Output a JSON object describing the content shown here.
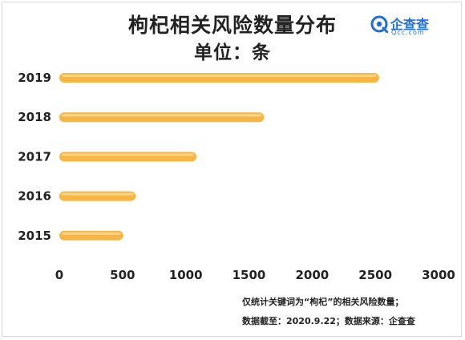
{
  "header": {
    "title": "枸杞相关风险数量分布",
    "subtitle": "单位：条"
  },
  "brand": {
    "name": "企查查",
    "domain": "Qcc.com",
    "color": "#1f6fd6"
  },
  "notes": {
    "line1": "仅统计关键词为“枸杞”的相关风险数量；",
    "line2": "数据截至：2020.9.22；数据来源：企查查"
  },
  "chart_data": {
    "type": "bar",
    "orientation": "horizontal",
    "title": "枸杞相关风险数量分布",
    "subtitle": "单位：条",
    "categories": [
      "2019",
      "2018",
      "2017",
      "2016",
      "2015"
    ],
    "values": [
      2530,
      1620,
      1085,
      605,
      505
    ],
    "xlim": [
      0,
      3000
    ],
    "xticks": [
      0,
      500,
      1000,
      1500,
      2000,
      2500,
      3000
    ],
    "grid": false,
    "bar_color": "#f7b643"
  }
}
